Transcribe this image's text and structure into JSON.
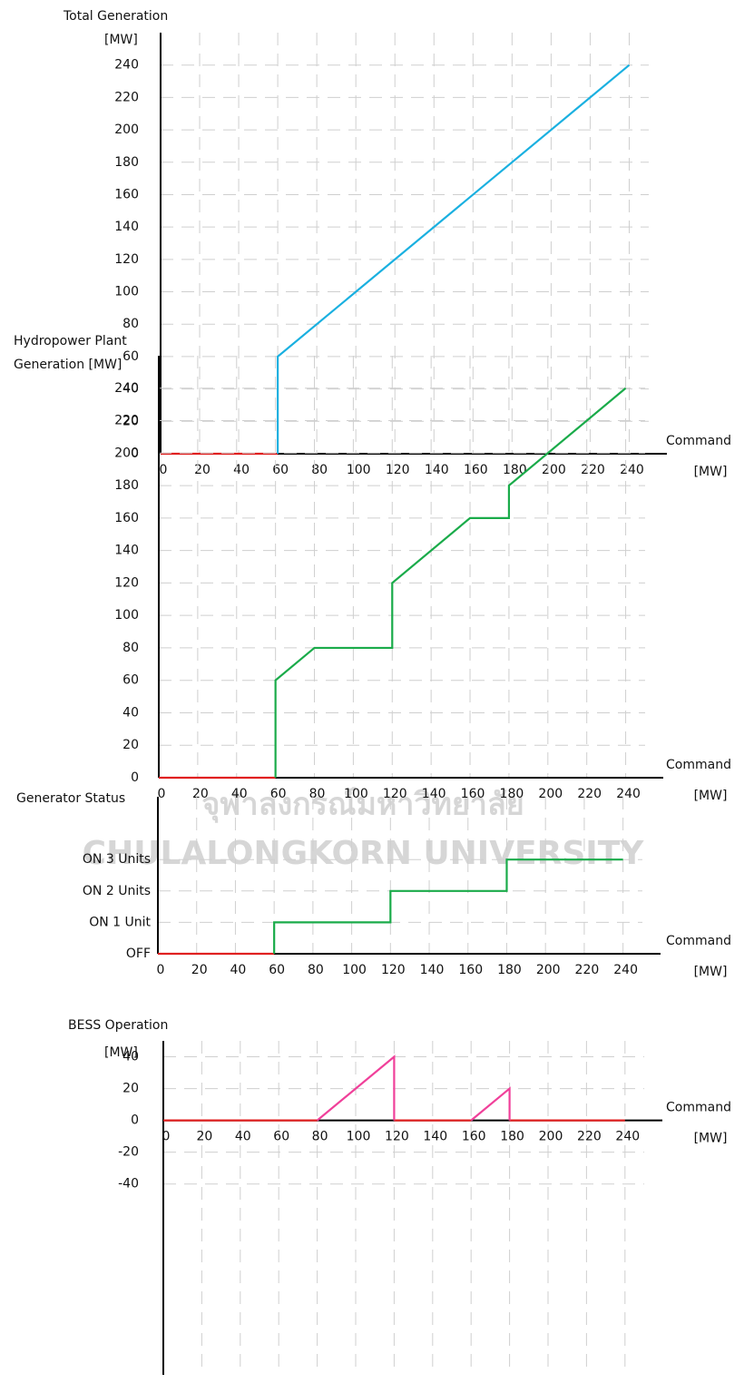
{
  "chart_data": [
    {
      "type": "line",
      "title": "Total Generation",
      "ylabel": "[MW]",
      "xlabel": "Command",
      "xunit": "[MW]",
      "xlim": [
        0,
        250
      ],
      "xticks": [
        0,
        20,
        40,
        60,
        80,
        100,
        120,
        140,
        160,
        180,
        200,
        220,
        240
      ],
      "ylim": [
        0,
        260
      ],
      "yticks": [
        0,
        20,
        40,
        60,
        80,
        100,
        120,
        140,
        160,
        180,
        200,
        220,
        240
      ],
      "grid": true,
      "series": [
        {
          "color": "#e02020",
          "x": [
            0,
            60
          ],
          "values": [
            0,
            0
          ]
        },
        {
          "color": "#1ab0e0",
          "x": [
            60,
            60,
            240
          ],
          "values": [
            0,
            60,
            240
          ]
        }
      ]
    },
    {
      "type": "line",
      "title": "Hydropower Plant",
      "ylabel": "Generation [MW]",
      "xlabel": "Command",
      "xunit": "[MW]",
      "xlim": [
        0,
        250
      ],
      "xticks": [
        0,
        20,
        40,
        60,
        80,
        100,
        120,
        140,
        160,
        180,
        200,
        220,
        240
      ],
      "ylim": [
        0,
        260
      ],
      "yticks": [
        0,
        20,
        40,
        60,
        80,
        100,
        120,
        140,
        160,
        180,
        200,
        220,
        240
      ],
      "grid": true,
      "series": [
        {
          "color": "#e02020",
          "x": [
            0,
            60
          ],
          "values": [
            0,
            0
          ]
        },
        {
          "color": "#1aab4a",
          "x": [
            60,
            60,
            80,
            120,
            120,
            160,
            180,
            180,
            240
          ],
          "values": [
            0,
            60,
            80,
            80,
            120,
            160,
            160,
            180,
            240
          ]
        }
      ]
    },
    {
      "type": "line",
      "title": "Generator Status",
      "xlabel": "Command",
      "xunit": "[MW]",
      "xlim": [
        0,
        250
      ],
      "xticks": [
        0,
        20,
        40,
        60,
        80,
        100,
        120,
        140,
        160,
        180,
        200,
        220,
        240
      ],
      "ylim": [
        0,
        5
      ],
      "yticks": [
        {
          "value": 0,
          "label": "OFF"
        },
        {
          "value": 1,
          "label": "ON 1 Unit"
        },
        {
          "value": 2,
          "label": "ON 2 Units"
        },
        {
          "value": 3,
          "label": "ON 3 Units"
        }
      ],
      "grid": true,
      "series": [
        {
          "color": "#e02020",
          "x": [
            0,
            60
          ],
          "values": [
            0,
            0
          ]
        },
        {
          "color": "#1aab4a",
          "x": [
            60,
            60,
            120,
            120,
            180,
            180,
            240
          ],
          "values": [
            0,
            1,
            1,
            2,
            2,
            3,
            3
          ]
        }
      ]
    },
    {
      "type": "line",
      "title": "BESS Operation",
      "ylabel": "[MW]",
      "xlabel": "Command",
      "xunit": "[MW]",
      "xlim": [
        0,
        250
      ],
      "xticks": [
        0,
        20,
        40,
        60,
        80,
        100,
        120,
        140,
        160,
        180,
        200,
        220,
        240
      ],
      "ylim": [
        -160,
        50
      ],
      "yticks": [
        -40,
        -20,
        0,
        20,
        40
      ],
      "grid": true,
      "series": [
        {
          "color": "#e02020",
          "x": [
            0,
            80,
            100,
            120,
            160,
            170,
            180,
            240
          ],
          "values": [
            0,
            0,
            null,
            0,
            0,
            null,
            0,
            0
          ]
        },
        {
          "color": "#f0409a",
          "x": [
            80,
            120,
            120,
            140,
            160,
            180,
            180
          ],
          "values": [
            0,
            40,
            0,
            null,
            0,
            20,
            0
          ]
        }
      ]
    }
  ],
  "watermark": {
    "thai": "จุฬาลงกรณ์มหาวิทยาลัย",
    "english": "CHULALONGKORN UNIVERSITY"
  }
}
